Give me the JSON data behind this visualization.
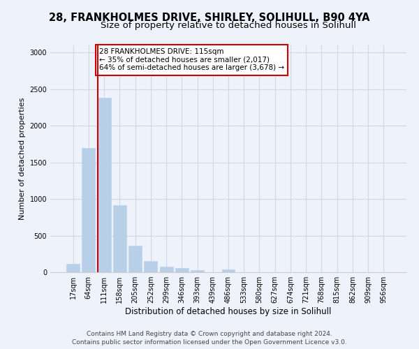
{
  "title1": "28, FRANKHOLMES DRIVE, SHIRLEY, SOLIHULL, B90 4YA",
  "title2": "Size of property relative to detached houses in Solihull",
  "xlabel": "Distribution of detached houses by size in Solihull",
  "ylabel": "Number of detached properties",
  "bar_labels": [
    "17sqm",
    "64sqm",
    "111sqm",
    "158sqm",
    "205sqm",
    "252sqm",
    "299sqm",
    "346sqm",
    "393sqm",
    "439sqm",
    "486sqm",
    "533sqm",
    "580sqm",
    "627sqm",
    "674sqm",
    "721sqm",
    "768sqm",
    "815sqm",
    "862sqm",
    "909sqm",
    "956sqm"
  ],
  "bar_values": [
    115,
    1700,
    2380,
    920,
    360,
    155,
    80,
    55,
    30,
    0,
    35,
    0,
    0,
    0,
    0,
    0,
    0,
    0,
    0,
    0,
    0
  ],
  "bar_color": "#b8cfe8",
  "bar_edge_color": "#b8cfe8",
  "grid_color": "#d0d8e8",
  "background_color": "#eef2fa",
  "vline_color": "#cc0000",
  "annotation_text": "28 FRANKHOLMES DRIVE: 115sqm\n← 35% of detached houses are smaller (2,017)\n64% of semi-detached houses are larger (3,678) →",
  "annotation_box_color": "#ffffff",
  "annotation_box_edge": "#cc0000",
  "ylim": [
    0,
    3100
  ],
  "yticks": [
    0,
    500,
    1000,
    1500,
    2000,
    2500,
    3000
  ],
  "footer_line1": "Contains HM Land Registry data © Crown copyright and database right 2024.",
  "footer_line2": "Contains public sector information licensed under the Open Government Licence v3.0.",
  "title1_fontsize": 10.5,
  "title2_fontsize": 9.5,
  "xlabel_fontsize": 8.5,
  "ylabel_fontsize": 8,
  "tick_fontsize": 7,
  "annot_fontsize": 7.5,
  "footer_fontsize": 6.5
}
